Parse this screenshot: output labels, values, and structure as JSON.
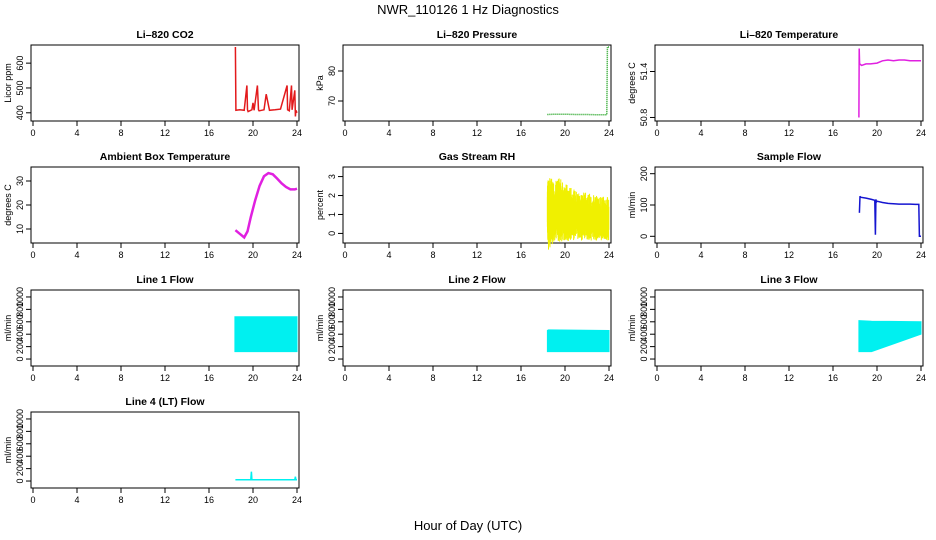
{
  "figure": {
    "title": "NWR_110126  1 Hz Diagnostics",
    "xlabel": "Hour of Day (UTC)"
  },
  "chart_data": [
    {
      "type": "line",
      "title": "Li–820 CO2",
      "ylabel": "Licor ppm",
      "color": "#e31a1c",
      "style": "spiky",
      "xlim": [
        0,
        24
      ],
      "xticks": [
        0,
        4,
        8,
        12,
        16,
        20,
        24
      ],
      "ylim": [
        375,
        665
      ],
      "yticks": [
        400,
        500,
        600
      ],
      "x": [
        18.4,
        18.45,
        18.8,
        19.2,
        19.45,
        19.5,
        19.55,
        19.9,
        20.0,
        20.1,
        20.4,
        20.5,
        20.55,
        21.0,
        21.2,
        21.5,
        22.0,
        22.5,
        23.1,
        23.15,
        23.3,
        23.5,
        23.55,
        23.8,
        23.85,
        23.9,
        24.0
      ],
      "y": [
        665,
        410,
        412,
        410,
        510,
        412,
        405,
        412,
        440,
        410,
        510,
        412,
        408,
        412,
        475,
        410,
        412,
        415,
        510,
        412,
        408,
        510,
        412,
        490,
        385,
        410,
        400
      ]
    },
    {
      "type": "line",
      "title": "Li–820 Pressure",
      "ylabel": "kPa",
      "color": "#1aa01a",
      "style": "dotted",
      "xlim": [
        0,
        24
      ],
      "xticks": [
        0,
        4,
        8,
        12,
        16,
        20,
        24
      ],
      "ylim": [
        64,
        88
      ],
      "yticks": [
        70,
        80
      ],
      "x": [
        18.4,
        19,
        20,
        21,
        22,
        23,
        23.8,
        23.85,
        24.0
      ],
      "y": [
        65.5,
        65.6,
        65.6,
        65.5,
        65.5,
        65.4,
        65.4,
        88,
        88
      ]
    },
    {
      "type": "line",
      "title": "Li–820 Temperature",
      "ylabel": "degrees C",
      "color": "#e020e0",
      "style": "line",
      "xlim": [
        0,
        24
      ],
      "xticks": [
        0,
        4,
        8,
        12,
        16,
        20,
        24
      ],
      "ylim": [
        50.78,
        51.72
      ],
      "yticks": [
        50.8,
        51.4
      ],
      "x": [
        18.35,
        18.38,
        18.42,
        18.6,
        19.0,
        19.4,
        20.0,
        20.5,
        21.0,
        21.5,
        22.0,
        22.5,
        23.0,
        23.5,
        24.0
      ],
      "y": [
        50.8,
        51.7,
        51.5,
        51.48,
        51.5,
        51.5,
        51.51,
        51.54,
        51.55,
        51.54,
        51.55,
        51.55,
        51.54,
        51.54,
        51.54
      ]
    },
    {
      "type": "line",
      "title": "Ambient Box Temperature",
      "ylabel": "degrees C",
      "color": "#e020e0",
      "style": "thick",
      "xlim": [
        0,
        24
      ],
      "xticks": [
        0,
        4,
        8,
        12,
        16,
        20,
        24
      ],
      "ylim": [
        5,
        35
      ],
      "yticks": [
        10,
        20,
        30
      ],
      "x": [
        18.4,
        18.8,
        19.2,
        19.5,
        19.8,
        20.2,
        20.6,
        21.0,
        21.4,
        21.8,
        22.2,
        22.6,
        23.0,
        23.4,
        23.8,
        24.0
      ],
      "y": [
        9.5,
        8.0,
        6.5,
        9.0,
        15.0,
        22.0,
        28.0,
        32.0,
        33.3,
        32.8,
        31.0,
        29.0,
        27.5,
        26.5,
        26.5,
        26.8
      ]
    },
    {
      "type": "line",
      "title": "Gas Stream RH",
      "ylabel": "percent",
      "color": "#f0f000",
      "style": "noise",
      "xlim": [
        0,
        24
      ],
      "xticks": [
        0,
        4,
        8,
        12,
        16,
        20,
        24
      ],
      "ylim": [
        -0.4,
        3.4
      ],
      "yticks": [
        0,
        1,
        2,
        3
      ],
      "x": [
        18.4,
        18.5,
        19.0,
        19.5,
        20.0,
        20.5,
        21.0,
        21.5,
        22.0,
        22.5,
        23.0,
        23.5,
        24.0
      ],
      "y": [
        1.2,
        0.9,
        1.0,
        1.1,
        1.0,
        0.9,
        0.85,
        0.8,
        0.8,
        0.75,
        0.7,
        0.7,
        0.7
      ],
      "spread": [
        1.0,
        1.5,
        1.3,
        1.3,
        1.2,
        1.1,
        1.0,
        1.0,
        0.95,
        0.95,
        0.9,
        0.9,
        0.9
      ]
    },
    {
      "type": "line",
      "title": "Sample Flow",
      "ylabel": "ml/min",
      "color": "#1515d0",
      "style": "line",
      "xlim": [
        0,
        24
      ],
      "xticks": [
        0,
        4,
        8,
        12,
        16,
        20,
        24
      ],
      "ylim": [
        -15,
        215
      ],
      "yticks": [
        0,
        100,
        200
      ],
      "x": [
        18.4,
        18.45,
        18.5,
        19.0,
        19.5,
        19.8,
        19.85,
        19.9,
        19.95,
        20.0,
        20.5,
        21.0,
        21.5,
        22.0,
        22.5,
        23.0,
        23.5,
        23.8,
        23.85,
        23.95,
        24.0
      ],
      "y": [
        75,
        128,
        125,
        122,
        118,
        115,
        5,
        118,
        110,
        112,
        108,
        105,
        104,
        103,
        103,
        103,
        102,
        102,
        0,
        0,
        0
      ]
    },
    {
      "type": "line",
      "title": "Line 1 Flow",
      "ylabel": "ml/min",
      "color": "#00f0f0",
      "style": "band",
      "xlim": [
        0,
        24
      ],
      "xticks": [
        0,
        4,
        8,
        12,
        16,
        20,
        24
      ],
      "ylim": [
        -80,
        1080
      ],
      "yticks": [
        0,
        200,
        400,
        600,
        800,
        1000
      ],
      "x": [
        18.35,
        18.4,
        18.75,
        24.0
      ],
      "y": [
        680,
        680,
        680,
        680
      ],
      "low": [
        120,
        120,
        120,
        120
      ]
    },
    {
      "type": "line",
      "title": "Line 2 Flow",
      "ylabel": "ml/min",
      "color": "#00f0f0",
      "style": "band",
      "xlim": [
        0,
        24
      ],
      "xticks": [
        0,
        4,
        8,
        12,
        16,
        20,
        24
      ],
      "ylim": [
        -80,
        1080
      ],
      "yticks": [
        0,
        200,
        400,
        600,
        800,
        1000
      ],
      "x": [
        18.4,
        18.5,
        24.0
      ],
      "y": [
        460,
        470,
        460
      ],
      "low": [
        120,
        120,
        120
      ]
    },
    {
      "type": "line",
      "title": "Line 3 Flow",
      "ylabel": "ml/min",
      "color": "#00f0f0",
      "style": "band",
      "xlim": [
        0,
        24
      ],
      "xticks": [
        0,
        4,
        8,
        12,
        16,
        20,
        24
      ],
      "ylim": [
        -80,
        1080
      ],
      "yticks": [
        0,
        200,
        400,
        600,
        800,
        1000
      ],
      "x": [
        18.35,
        19.5,
        24.0
      ],
      "y": [
        620,
        610,
        600
      ],
      "low": [
        120,
        120,
        400
      ]
    },
    {
      "type": "line",
      "title": "Line 4 (LT) Flow",
      "ylabel": "ml/min",
      "color": "#00f0f0",
      "style": "line",
      "xlim": [
        0,
        24
      ],
      "xticks": [
        0,
        4,
        8,
        12,
        16,
        20,
        24
      ],
      "ylim": [
        -80,
        1080
      ],
      "yticks": [
        0,
        200,
        400,
        600,
        800,
        1000
      ],
      "x": [
        18.4,
        19.8,
        19.85,
        19.9,
        20.0,
        23.8,
        23.85,
        23.9,
        24.0
      ],
      "y": [
        20,
        20,
        150,
        20,
        20,
        20,
        70,
        20,
        20
      ]
    }
  ]
}
